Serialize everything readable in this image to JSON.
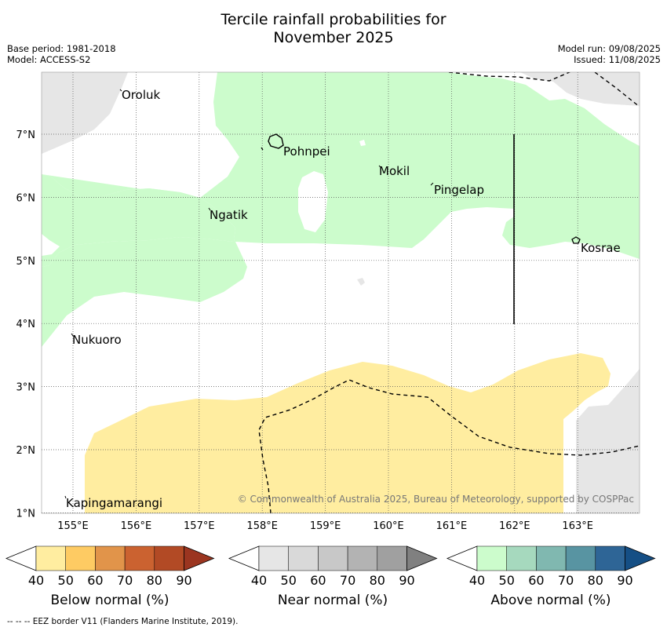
{
  "title_line1": "Tercile rainfall probabilities for",
  "title_line2": "November 2025",
  "meta": {
    "base_period": "Base period: 1981-2018",
    "model": "Model: ACCESS-S2",
    "model_run": "Model run: 09/08/2025",
    "issued": "Issued: 11/08/2025"
  },
  "map": {
    "lon_labels": [
      "155°E",
      "156°E",
      "157°E",
      "158°E",
      "159°E",
      "160°E",
      "161°E",
      "162°E",
      "163°E"
    ],
    "lat_labels": [
      "7°N",
      "6°N",
      "5°N",
      "4°N",
      "3°N",
      "2°N",
      "1°N"
    ],
    "places": {
      "oroluk": "Oroluk",
      "pohnpei": "Pohnpei",
      "mokil": "Mokil",
      "pingelap": "Pingelap",
      "ngatik": "Ngatik",
      "kosrae": "Kosrae",
      "nukuoro": "Nukuoro",
      "kapingamarangi": "Kapingamarangi"
    },
    "copyright": "© Commonwealth of Australia 2025, Bureau of Meteorology, supported by COSPPac",
    "colors": {
      "above_50": "#ccfccc",
      "below_50": "#ffeda0",
      "no_data": "#e6e6e6"
    }
  },
  "colorbars": {
    "ticks": [
      "40",
      "50",
      "60",
      "70",
      "80",
      "90"
    ],
    "below": {
      "label": "Below normal (%)",
      "colors": [
        "#ffffff",
        "#ffeda0",
        "#fecb63",
        "#e1944a",
        "#cb6230",
        "#b24a25",
        "#9b3520"
      ]
    },
    "near": {
      "label": "Near normal (%)",
      "colors": [
        "#ffffff",
        "#e6e6e6",
        "#d9d9d9",
        "#c8c8c8",
        "#b3b3b3",
        "#a0a0a0",
        "#808080"
      ]
    },
    "above": {
      "label": "Above normal (%)",
      "colors": [
        "#ffffff",
        "#ccfccc",
        "#a6d9be",
        "#80b8b0",
        "#5894a2",
        "#2e6596",
        "#154f85"
      ]
    }
  },
  "footnote": "--  --  -- EEZ border V11 (Flanders Marine Institute, 2019)."
}
